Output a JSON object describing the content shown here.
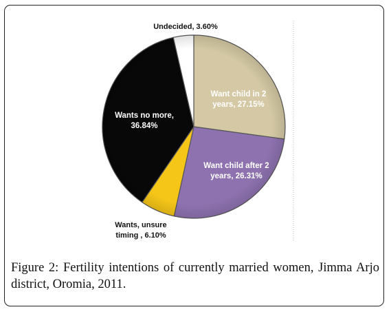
{
  "figure": {
    "label": "Figure 2:",
    "caption": "Fertility intentions of currently married women, Jimma Arjo district, Oromia, 2011."
  },
  "chart_data": {
    "type": "pie",
    "title": "",
    "start_angle_deg": 0,
    "direction": "clockwise",
    "slices": [
      {
        "label_lines": [
          "Want child in 2",
          "years, 27.15%"
        ],
        "name": "Want child in 2 years",
        "value": 27.15,
        "color": "#d4c9a4",
        "label_color": "#ffffff"
      },
      {
        "label_lines": [
          "Want child after 2",
          "years, 26.31%"
        ],
        "name": "Want child after 2 years",
        "value": 26.31,
        "color": "#8e72b0",
        "label_color": "#ffffff"
      },
      {
        "label_lines": [
          "Wants, unsure",
          "timing , 6.10%"
        ],
        "name": "Wants, unsure timing",
        "value": 6.1,
        "color": "#f5c518",
        "label_color": "#111111"
      },
      {
        "label_lines": [
          "Wants no more,",
          "36.84%"
        ],
        "name": "Wants no more",
        "value": 36.84,
        "color": "#080808",
        "label_color": "#ffffff"
      },
      {
        "label_lines": [
          "Undecided, 3.60%"
        ],
        "name": "Undecided",
        "value": 3.6,
        "color": "#ffffff",
        "label_color": "#111111"
      }
    ]
  }
}
